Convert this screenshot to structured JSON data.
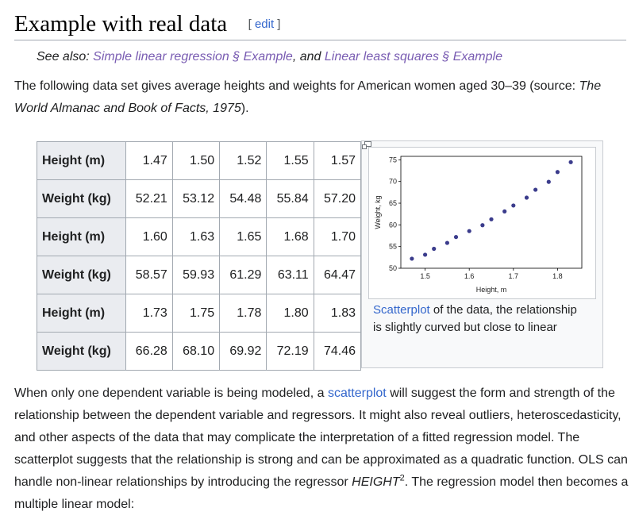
{
  "heading": {
    "title": "Example with real data",
    "edit_open": "[",
    "edit_label": "edit",
    "edit_close": "]"
  },
  "hatnote": {
    "prefix": "See also: ",
    "link1": "Simple linear regression § Example",
    "middle": ", and ",
    "link2": "Linear least squares § Example"
  },
  "intro": {
    "text1": "The following data set gives average heights and weights for American women aged 30–39 (source: ",
    "source_title": "The World Almanac and Book of Facts, 1975",
    "text2": ")."
  },
  "table": {
    "rows": [
      {
        "label": "Height (m)",
        "values": [
          "1.47",
          "1.50",
          "1.52",
          "1.55",
          "1.57"
        ]
      },
      {
        "label": "Weight (kg)",
        "values": [
          "52.21",
          "53.12",
          "54.48",
          "55.84",
          "57.20"
        ]
      },
      {
        "label": "Height (m)",
        "values": [
          "1.60",
          "1.63",
          "1.65",
          "1.68",
          "1.70"
        ]
      },
      {
        "label": "Weight (kg)",
        "values": [
          "58.57",
          "59.93",
          "61.29",
          "63.11",
          "64.47"
        ]
      },
      {
        "label": "Height (m)",
        "values": [
          "1.73",
          "1.75",
          "1.78",
          "1.80",
          "1.83"
        ]
      },
      {
        "label": "Weight (kg)",
        "values": [
          "66.28",
          "68.10",
          "69.92",
          "72.19",
          "74.46"
        ]
      }
    ]
  },
  "figure": {
    "caption_link": "Scatterplot",
    "caption_text": " of the data, the relationship is slightly curved but close to linear",
    "magnify_icon": "magnify-clip-icon",
    "point_color": "#3b3c8c"
  },
  "chart_data": {
    "type": "scatter",
    "title": "",
    "xlabel": "Height, m",
    "ylabel": "Weight, kg",
    "x": [
      1.47,
      1.5,
      1.52,
      1.55,
      1.57,
      1.6,
      1.63,
      1.65,
      1.68,
      1.7,
      1.73,
      1.75,
      1.78,
      1.8,
      1.83
    ],
    "y": [
      52.21,
      53.12,
      54.48,
      55.84,
      57.2,
      58.57,
      59.93,
      61.29,
      63.11,
      64.47,
      66.28,
      68.1,
      69.92,
      72.19,
      74.46
    ],
    "xlim": [
      1.445,
      1.855
    ],
    "ylim": [
      50,
      75.8
    ],
    "xticks": [
      "1.5",
      "1.6",
      "1.7",
      "1.8"
    ],
    "yticks": [
      "50",
      "55",
      "60",
      "65",
      "70",
      "75"
    ],
    "grid": false,
    "legend": "none"
  },
  "body": {
    "text1": "When only one dependent variable is being modeled, a ",
    "link": "scatterplot",
    "text2": " will suggest the form and strength of the relationship between the dependent variable and regressors. It might also reveal outliers, heteroscedasticity, and other aspects of the data that may complicate the interpretation of a fitted regression model. The scatterplot suggests that the relationship is strong and can be approximated as a quadratic function. OLS can handle non-linear relationships by introducing the regressor ",
    "var": "HEIGHT",
    "sup": "2",
    "text3": ". The regression model then becomes a multiple linear model:"
  }
}
